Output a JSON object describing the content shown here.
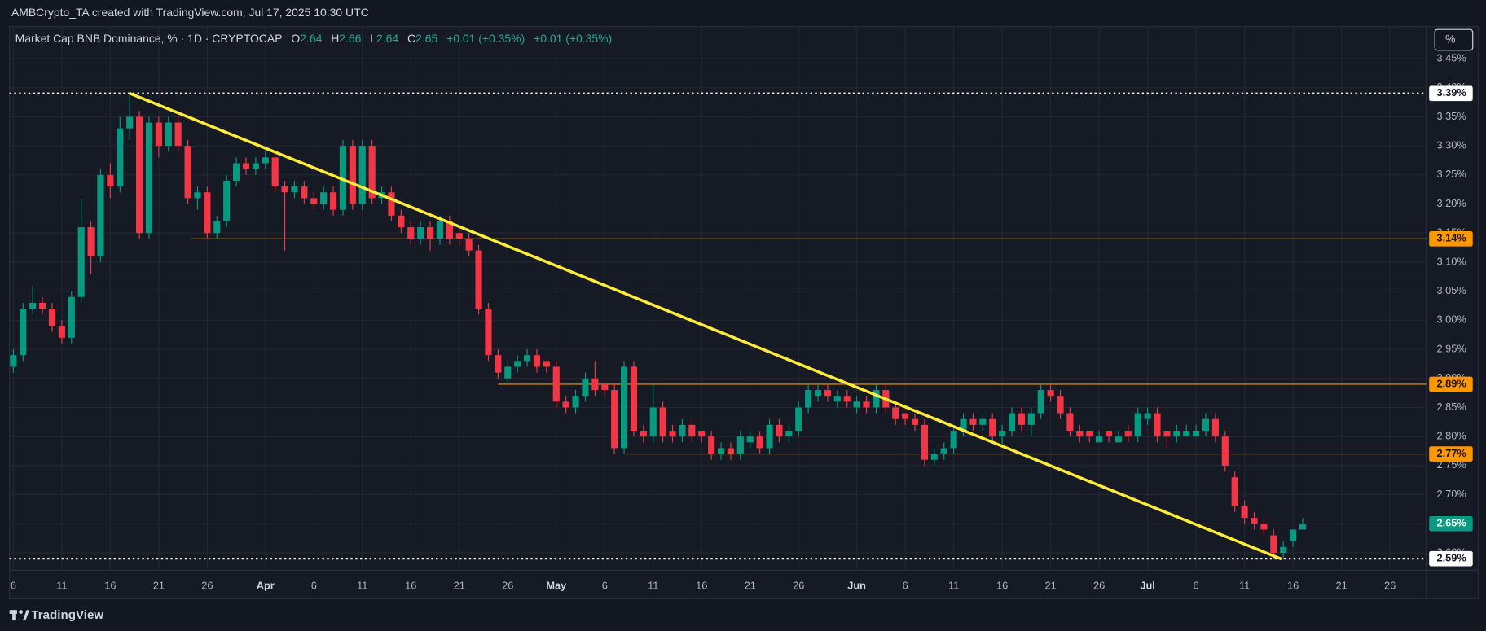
{
  "header": "AMBCrypto_TA created with TradingView.com, Jul 17, 2025 10:30 UTC",
  "footer": "TradingView",
  "chart_data": {
    "type": "candlestick",
    "title": "Market Cap BNB Dominance, % · 1D · CRYPTOCAP",
    "legend_values": [
      {
        "label": "O",
        "value": 2.64
      },
      {
        "label": "H",
        "value": 2.66
      },
      {
        "label": "L",
        "value": 2.64
      },
      {
        "label": "C",
        "value": 2.65
      }
    ],
    "change": [
      "+0.01 (+0.35%)",
      "+0.01 (+0.35%)"
    ],
    "unit_button": "%",
    "up_color": "#089981",
    "down_color": "#f23645",
    "x": [
      0,
      1,
      2,
      3,
      4,
      5,
      6,
      7,
      8,
      9,
      10,
      11,
      12,
      13,
      14,
      15,
      16,
      17,
      18,
      19,
      20,
      21,
      22,
      23,
      24,
      25,
      26,
      27,
      28,
      29,
      30,
      31,
      32,
      33,
      34,
      35,
      36,
      37,
      38,
      39,
      40,
      41,
      42,
      43,
      44,
      45,
      46,
      47,
      48,
      49,
      50,
      51,
      52,
      53,
      54,
      55,
      56,
      57,
      58,
      59,
      60,
      61,
      62,
      63,
      64,
      65,
      66,
      67,
      68,
      69,
      70,
      71,
      72,
      73,
      74,
      75,
      76,
      77,
      78,
      79,
      80,
      81,
      82,
      83,
      84,
      85,
      86,
      87,
      88,
      89,
      90,
      91,
      92,
      93,
      94,
      95,
      96,
      97,
      98,
      99,
      100,
      101,
      102,
      103,
      104,
      105,
      106,
      107,
      108,
      109,
      110,
      111,
      112,
      113,
      114,
      115,
      116,
      117,
      118,
      119,
      120,
      121,
      122,
      123,
      124,
      125,
      126,
      127,
      128,
      129,
      130,
      131,
      132,
      133
    ],
    "values": [
      [
        2.92,
        2.95,
        2.91,
        2.94
      ],
      [
        2.94,
        3.03,
        2.93,
        3.02
      ],
      [
        3.02,
        3.06,
        3.01,
        3.03
      ],
      [
        3.03,
        3.04,
        3.01,
        3.02
      ],
      [
        3.02,
        3.03,
        2.98,
        2.99
      ],
      [
        2.99,
        3.0,
        2.96,
        2.97
      ],
      [
        2.97,
        3.05,
        2.96,
        3.04
      ],
      [
        3.04,
        3.21,
        3.03,
        3.16
      ],
      [
        3.16,
        3.17,
        3.08,
        3.11
      ],
      [
        3.11,
        3.26,
        3.1,
        3.25
      ],
      [
        3.25,
        3.27,
        3.21,
        3.23
      ],
      [
        3.23,
        3.35,
        3.22,
        3.33
      ],
      [
        3.33,
        3.39,
        3.31,
        3.35
      ],
      [
        3.35,
        3.36,
        3.14,
        3.15
      ],
      [
        3.15,
        3.35,
        3.14,
        3.34
      ],
      [
        3.34,
        3.35,
        3.28,
        3.3
      ],
      [
        3.3,
        3.35,
        3.29,
        3.34
      ],
      [
        3.34,
        3.35,
        3.29,
        3.3
      ],
      [
        3.3,
        3.31,
        3.2,
        3.21
      ],
      [
        3.21,
        3.23,
        3.19,
        3.22
      ],
      [
        3.22,
        3.23,
        3.14,
        3.15
      ],
      [
        3.15,
        3.18,
        3.14,
        3.17
      ],
      [
        3.17,
        3.25,
        3.16,
        3.24
      ],
      [
        3.24,
        3.28,
        3.23,
        3.27
      ],
      [
        3.27,
        3.28,
        3.25,
        3.26
      ],
      [
        3.26,
        3.28,
        3.25,
        3.27
      ],
      [
        3.27,
        3.29,
        3.26,
        3.28
      ],
      [
        3.28,
        3.29,
        3.22,
        3.23
      ],
      [
        3.23,
        3.24,
        3.12,
        3.22
      ],
      [
        3.22,
        3.24,
        3.21,
        3.23
      ],
      [
        3.23,
        3.24,
        3.2,
        3.21
      ],
      [
        3.21,
        3.22,
        3.19,
        3.2
      ],
      [
        3.2,
        3.23,
        3.19,
        3.22
      ],
      [
        3.22,
        3.23,
        3.18,
        3.19
      ],
      [
        3.19,
        3.31,
        3.18,
        3.3
      ],
      [
        3.3,
        3.31,
        3.19,
        3.2
      ],
      [
        3.2,
        3.31,
        3.19,
        3.3
      ],
      [
        3.3,
        3.31,
        3.2,
        3.21
      ],
      [
        3.21,
        3.23,
        3.2,
        3.22
      ],
      [
        3.22,
        3.23,
        3.17,
        3.18
      ],
      [
        3.18,
        3.19,
        3.15,
        3.16
      ],
      [
        3.16,
        3.17,
        3.13,
        3.14
      ],
      [
        3.14,
        3.17,
        3.13,
        3.16
      ],
      [
        3.16,
        3.17,
        3.12,
        3.14
      ],
      [
        3.14,
        3.18,
        3.13,
        3.17
      ],
      [
        3.17,
        3.18,
        3.13,
        3.14
      ],
      [
        3.15,
        3.16,
        3.13,
        3.14
      ],
      [
        3.14,
        3.15,
        3.11,
        3.12
      ],
      [
        3.12,
        3.13,
        3.01,
        3.02
      ],
      [
        3.02,
        3.03,
        2.93,
        2.94
      ],
      [
        2.94,
        2.95,
        2.9,
        2.91
      ],
      [
        2.9,
        2.93,
        2.89,
        2.92
      ],
      [
        2.92,
        2.94,
        2.91,
        2.93
      ],
      [
        2.93,
        2.95,
        2.92,
        2.94
      ],
      [
        2.94,
        2.95,
        2.91,
        2.92
      ],
      [
        2.93,
        2.93,
        2.91,
        2.92
      ],
      [
        2.92,
        2.93,
        2.85,
        2.86
      ],
      [
        2.86,
        2.87,
        2.84,
        2.85
      ],
      [
        2.85,
        2.88,
        2.84,
        2.87
      ],
      [
        2.87,
        2.91,
        2.86,
        2.9
      ],
      [
        2.9,
        2.93,
        2.87,
        2.88
      ],
      [
        2.89,
        2.89,
        2.87,
        2.88
      ],
      [
        2.88,
        2.89,
        2.77,
        2.78
      ],
      [
        2.78,
        2.93,
        2.77,
        2.92
      ],
      [
        2.92,
        2.93,
        2.8,
        2.81
      ],
      [
        2.81,
        2.82,
        2.79,
        2.8
      ],
      [
        2.8,
        2.89,
        2.79,
        2.85
      ],
      [
        2.85,
        2.86,
        2.79,
        2.8
      ],
      [
        2.81,
        2.82,
        2.79,
        2.8
      ],
      [
        2.8,
        2.83,
        2.79,
        2.82
      ],
      [
        2.82,
        2.83,
        2.79,
        2.8
      ],
      [
        2.81,
        2.81,
        2.79,
        2.8
      ],
      [
        2.8,
        2.81,
        2.76,
        2.77
      ],
      [
        2.77,
        2.79,
        2.76,
        2.78
      ],
      [
        2.78,
        2.79,
        2.76,
        2.77
      ],
      [
        2.77,
        2.81,
        2.76,
        2.8
      ],
      [
        2.79,
        2.81,
        2.78,
        2.8
      ],
      [
        2.8,
        2.81,
        2.77,
        2.78
      ],
      [
        2.78,
        2.83,
        2.77,
        2.82
      ],
      [
        2.82,
        2.83,
        2.79,
        2.8
      ],
      [
        2.8,
        2.82,
        2.79,
        2.81
      ],
      [
        2.81,
        2.86,
        2.8,
        2.85
      ],
      [
        2.85,
        2.89,
        2.84,
        2.88
      ],
      [
        2.87,
        2.89,
        2.86,
        2.88
      ],
      [
        2.88,
        2.89,
        2.86,
        2.87
      ],
      [
        2.86,
        2.88,
        2.85,
        2.87
      ],
      [
        2.87,
        2.88,
        2.85,
        2.86
      ],
      [
        2.85,
        2.87,
        2.84,
        2.86
      ],
      [
        2.86,
        2.87,
        2.84,
        2.85
      ],
      [
        2.85,
        2.89,
        2.84,
        2.88
      ],
      [
        2.88,
        2.89,
        2.84,
        2.85
      ],
      [
        2.85,
        2.86,
        2.82,
        2.83
      ],
      [
        2.84,
        2.84,
        2.82,
        2.83
      ],
      [
        2.83,
        2.84,
        2.81,
        2.82
      ],
      [
        2.82,
        2.83,
        2.75,
        2.76
      ],
      [
        2.76,
        2.78,
        2.75,
        2.77
      ],
      [
        2.77,
        2.79,
        2.76,
        2.78
      ],
      [
        2.78,
        2.82,
        2.77,
        2.81
      ],
      [
        2.81,
        2.84,
        2.8,
        2.83
      ],
      [
        2.83,
        2.84,
        2.81,
        2.82
      ],
      [
        2.82,
        2.84,
        2.81,
        2.83
      ],
      [
        2.83,
        2.84,
        2.79,
        2.8
      ],
      [
        2.8,
        2.82,
        2.78,
        2.81
      ],
      [
        2.81,
        2.85,
        2.8,
        2.84
      ],
      [
        2.84,
        2.85,
        2.81,
        2.82
      ],
      [
        2.82,
        2.85,
        2.8,
        2.84
      ],
      [
        2.84,
        2.89,
        2.83,
        2.88
      ],
      [
        2.88,
        2.89,
        2.86,
        2.87
      ],
      [
        2.87,
        2.88,
        2.83,
        2.84
      ],
      [
        2.84,
        2.85,
        2.8,
        2.81
      ],
      [
        2.81,
        2.82,
        2.79,
        2.8
      ],
      [
        2.81,
        2.81,
        2.79,
        2.8
      ],
      [
        2.79,
        2.81,
        2.79,
        2.8
      ],
      [
        2.81,
        2.81,
        2.79,
        2.8
      ],
      [
        2.79,
        2.81,
        2.79,
        2.8
      ],
      [
        2.81,
        2.82,
        2.79,
        2.8
      ],
      [
        2.8,
        2.85,
        2.79,
        2.84
      ],
      [
        2.83,
        2.85,
        2.82,
        2.84
      ],
      [
        2.84,
        2.85,
        2.79,
        2.8
      ],
      [
        2.81,
        2.81,
        2.78,
        2.8
      ],
      [
        2.8,
        2.82,
        2.79,
        2.81
      ],
      [
        2.8,
        2.82,
        2.8,
        2.81
      ],
      [
        2.8,
        2.82,
        2.8,
        2.81
      ],
      [
        2.81,
        2.84,
        2.8,
        2.83
      ],
      [
        2.83,
        2.84,
        2.79,
        2.8
      ],
      [
        2.8,
        2.81,
        2.74,
        2.75
      ],
      [
        2.73,
        2.74,
        2.67,
        2.68
      ],
      [
        2.68,
        2.69,
        2.65,
        2.66
      ],
      [
        2.66,
        2.67,
        2.64,
        2.65
      ],
      [
        2.65,
        2.66,
        2.63,
        2.64
      ],
      [
        2.63,
        2.64,
        2.59,
        2.6
      ],
      [
        2.6,
        2.62,
        2.59,
        2.61
      ],
      [
        2.62,
        2.64,
        2.61,
        2.64
      ],
      [
        2.64,
        2.66,
        2.64,
        2.65
      ]
    ],
    "xlim": [
      -0.4,
      145.75
    ],
    "xticks": [
      {
        "value": 0,
        "label": "6"
      },
      {
        "value": 5,
        "label": "11"
      },
      {
        "value": 10,
        "label": "16"
      },
      {
        "value": 15,
        "label": "21"
      },
      {
        "value": 20,
        "label": "26"
      },
      {
        "value": 26,
        "label": "Apr"
      },
      {
        "value": 31,
        "label": "6"
      },
      {
        "value": 36,
        "label": "11"
      },
      {
        "value": 41,
        "label": "16"
      },
      {
        "value": 46,
        "label": "21"
      },
      {
        "value": 51,
        "label": "26"
      },
      {
        "value": 56,
        "label": "May"
      },
      {
        "value": 61,
        "label": "6"
      },
      {
        "value": 66,
        "label": "11"
      },
      {
        "value": 71,
        "label": "16"
      },
      {
        "value": 76,
        "label": "21"
      },
      {
        "value": 81,
        "label": "26"
      },
      {
        "value": 87,
        "label": "Jun"
      },
      {
        "value": 92,
        "label": "6"
      },
      {
        "value": 97,
        "label": "11"
      },
      {
        "value": 102,
        "label": "16"
      },
      {
        "value": 107,
        "label": "21"
      },
      {
        "value": 112,
        "label": "26"
      },
      {
        "value": 117,
        "label": "Jul"
      },
      {
        "value": 122,
        "label": "6"
      },
      {
        "value": 127,
        "label": "11"
      },
      {
        "value": 132,
        "label": "16"
      },
      {
        "value": 137,
        "label": "21"
      },
      {
        "value": 142,
        "label": "26"
      }
    ],
    "ylim": [
      2.57,
      3.505
    ],
    "yticks": [
      {
        "value": 2.6,
        "label": "2.60%"
      },
      {
        "value": 2.65,
        "label": "2.65%"
      },
      {
        "value": 2.7,
        "label": "2.70%"
      },
      {
        "value": 2.75,
        "label": "2.75%"
      },
      {
        "value": 2.8,
        "label": "2.80%"
      },
      {
        "value": 2.85,
        "label": "2.85%"
      },
      {
        "value": 2.9,
        "label": "2.90%"
      },
      {
        "value": 2.95,
        "label": "2.95%"
      },
      {
        "value": 3.0,
        "label": "3.00%"
      },
      {
        "value": 3.05,
        "label": "3.05%"
      },
      {
        "value": 3.1,
        "label": "3.10%"
      },
      {
        "value": 3.15,
        "label": "3.15%"
      },
      {
        "value": 3.2,
        "label": "3.20%"
      },
      {
        "value": 3.25,
        "label": "3.25%"
      },
      {
        "value": 3.3,
        "label": "3.30%"
      },
      {
        "value": 3.35,
        "label": "3.35%"
      },
      {
        "value": 3.4,
        "label": "3.40%"
      },
      {
        "value": 3.45,
        "label": "3.45%"
      }
    ],
    "grid": true,
    "levels": [
      {
        "value": 3.39,
        "label": "3.39%",
        "color": "#ffffff",
        "dotted": true
      },
      {
        "value": 3.14,
        "label": "3.14%",
        "color": "#ff9800",
        "dotted": false,
        "x_start": 18.2
      },
      {
        "value": 2.89,
        "label": "2.89%",
        "color": "#ff9800",
        "dotted": false,
        "x_start": 50
      },
      {
        "value": 2.77,
        "label": "2.77%",
        "color": "#ff9800",
        "dotted": false,
        "x_start": 63.2
      },
      {
        "value": 2.59,
        "label": "2.59%",
        "color": "#ffffff",
        "dotted": true
      }
    ],
    "trendline": {
      "x": [
        12.05,
        130.7
      ],
      "y": [
        3.39,
        2.59
      ],
      "color": "#ffeb3b"
    },
    "last_price": {
      "value": 2.65,
      "label": "2.65%",
      "color": "#089981"
    }
  }
}
